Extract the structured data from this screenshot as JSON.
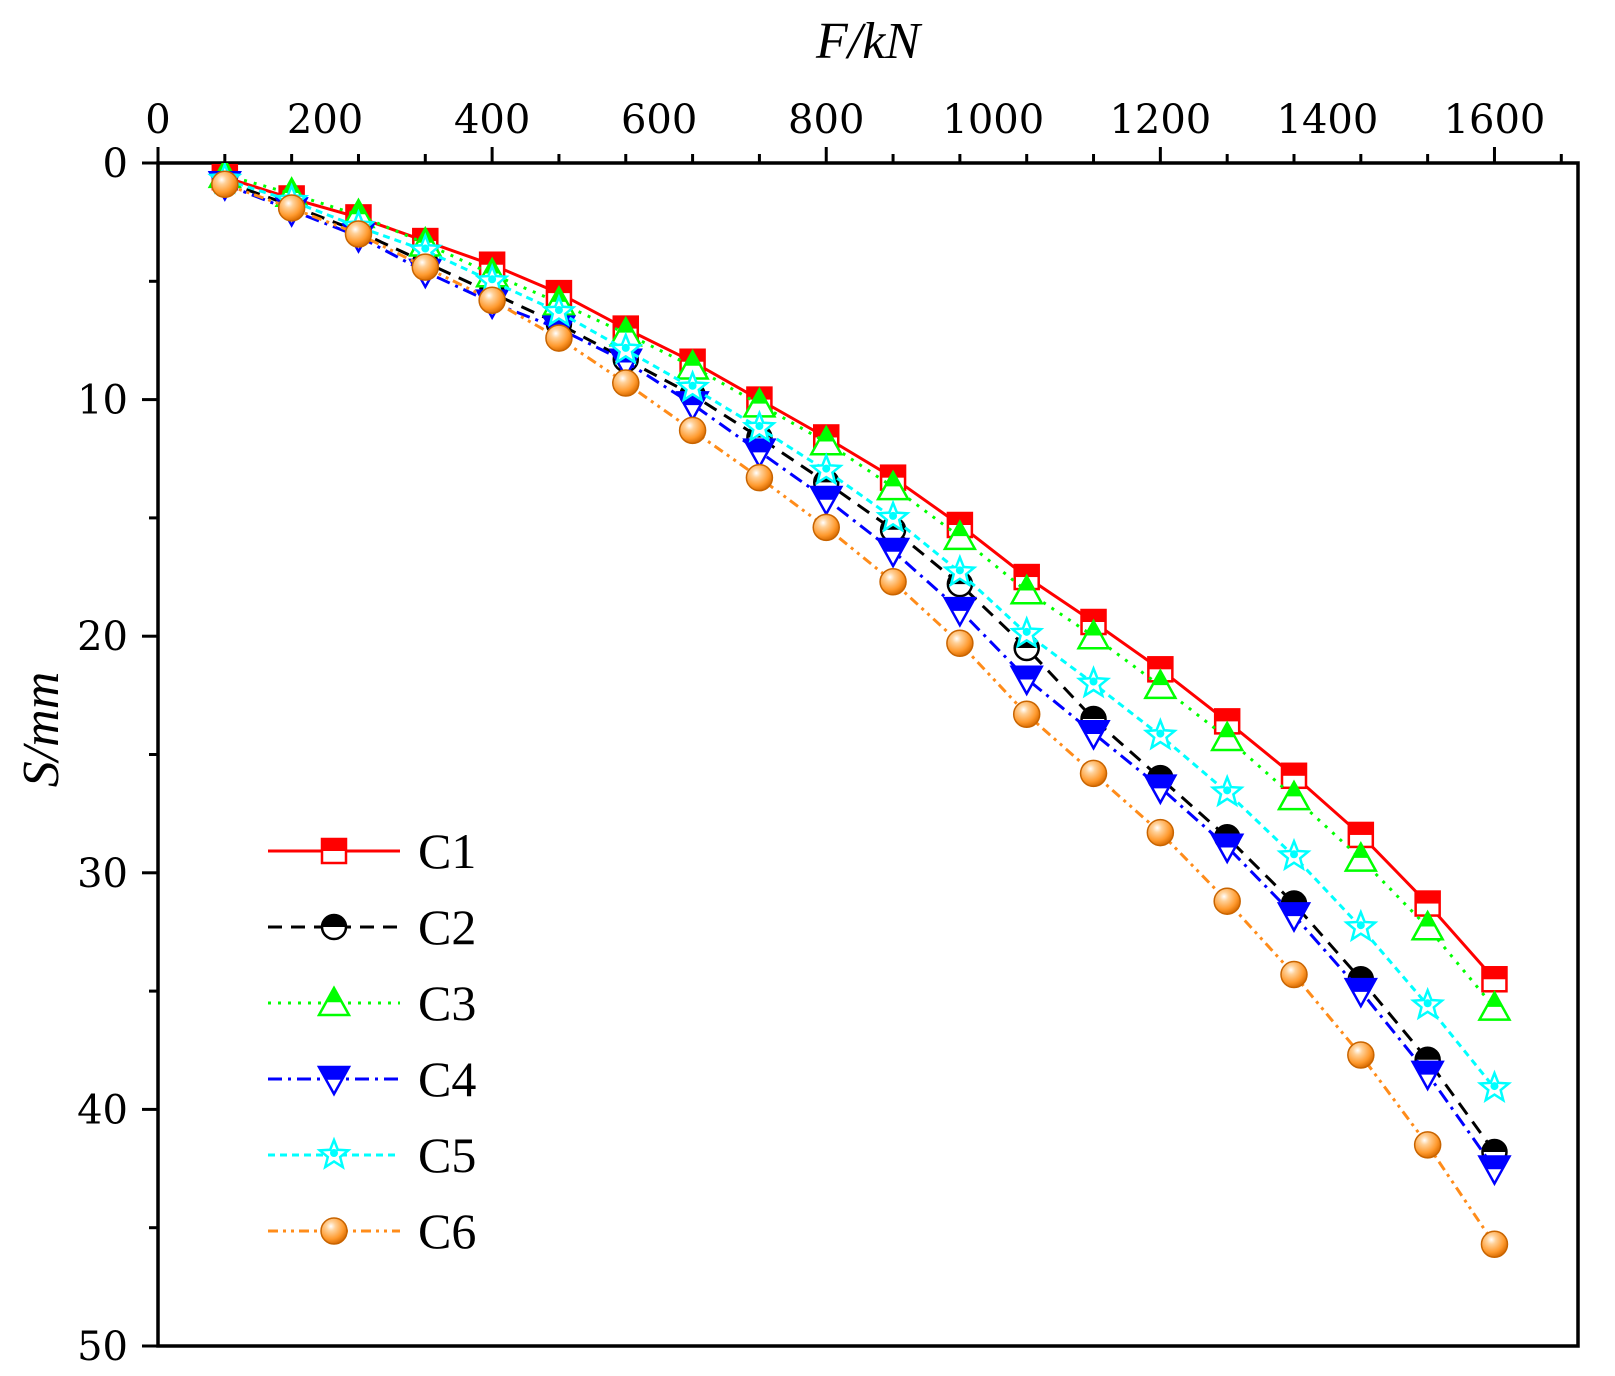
{
  "chart_data": {
    "type": "line",
    "xlabel": "F/kN",
    "ylabel": "S/mm",
    "x_axis_position": "top",
    "y_axis_inverted": true,
    "xlim": [
      0,
      1700
    ],
    "ylim": [
      0,
      50
    ],
    "xticks": [
      0,
      200,
      400,
      600,
      800,
      1000,
      1200,
      1400,
      1600
    ],
    "yticks": [
      0,
      10,
      20,
      30,
      40,
      50
    ],
    "legend_position": "bottom-left",
    "grid": false,
    "x": [
      80,
      160,
      240,
      320,
      400,
      480,
      560,
      640,
      720,
      800,
      880,
      960,
      1040,
      1120,
      1200,
      1280,
      1360,
      1440,
      1520,
      1600
    ],
    "series": [
      {
        "name": "C1",
        "color": "#ff0000",
        "dash": "solid",
        "marker": "square",
        "values": [
          0.6,
          1.5,
          2.3,
          3.3,
          4.3,
          5.5,
          7.0,
          8.4,
          10.0,
          11.6,
          13.3,
          15.3,
          17.5,
          19.4,
          21.4,
          23.6,
          25.9,
          28.4,
          31.3,
          34.5
        ]
      },
      {
        "name": "C2",
        "color": "#000000",
        "dash": "dash",
        "marker": "circle-half",
        "values": [
          0.8,
          1.8,
          2.9,
          4.2,
          5.5,
          6.8,
          8.3,
          9.8,
          11.6,
          13.5,
          15.5,
          17.8,
          20.5,
          23.5,
          26.0,
          28.5,
          31.3,
          34.5,
          37.9,
          41.8
        ]
      },
      {
        "name": "C3",
        "color": "#00ff00",
        "dash": "dot",
        "marker": "triangle-up",
        "values": [
          0.5,
          1.3,
          2.2,
          3.4,
          4.7,
          5.9,
          7.2,
          8.6,
          10.2,
          11.8,
          13.7,
          15.8,
          18.1,
          20.0,
          22.1,
          24.3,
          26.8,
          29.4,
          32.3,
          35.7
        ]
      },
      {
        "name": "C4",
        "color": "#0000ff",
        "dash": "dashdot",
        "marker": "triangle-down",
        "values": [
          0.9,
          2.0,
          3.1,
          4.6,
          5.9,
          7.0,
          8.4,
          10.2,
          12.2,
          14.2,
          16.4,
          18.9,
          21.8,
          24.1,
          26.4,
          28.9,
          31.8,
          35.0,
          38.5,
          42.5
        ]
      },
      {
        "name": "C5",
        "color": "#00ffff",
        "dash": "shortdash",
        "marker": "star",
        "values": [
          0.7,
          1.6,
          2.7,
          3.7,
          5.0,
          6.3,
          7.9,
          9.5,
          11.2,
          13.0,
          15.0,
          17.3,
          19.9,
          22.0,
          24.2,
          26.6,
          29.3,
          32.3,
          35.6,
          39.1
        ]
      },
      {
        "name": "C6",
        "color": "#ff8c1a",
        "dash": "dashdotdot",
        "marker": "circle-filled",
        "values": [
          0.9,
          1.9,
          3.0,
          4.4,
          5.8,
          7.4,
          9.3,
          11.3,
          13.3,
          15.4,
          17.7,
          20.3,
          23.3,
          25.8,
          28.3,
          31.2,
          34.3,
          37.7,
          41.5,
          45.7
        ]
      }
    ]
  }
}
